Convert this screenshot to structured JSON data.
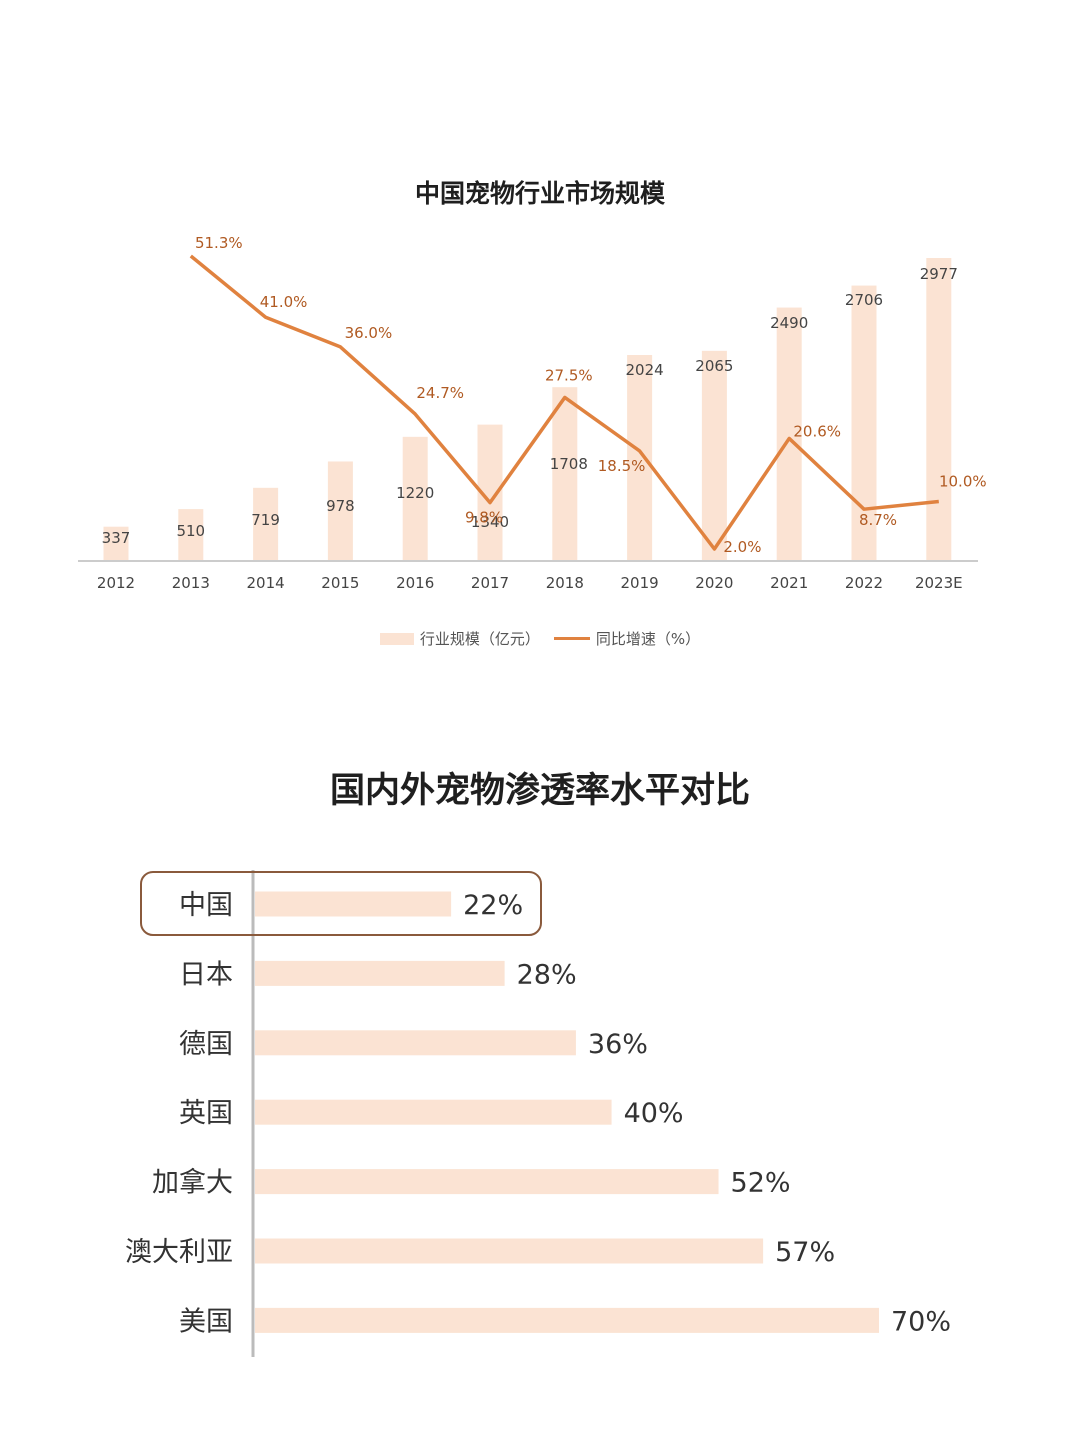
{
  "chart_data": [
    {
      "type": "bar",
      "title": "中国宠物行业市场规模",
      "categories": [
        "2012",
        "2013",
        "2014",
        "2015",
        "2016",
        "2017",
        "2018",
        "2019",
        "2020",
        "2021",
        "2022",
        "2023E"
      ],
      "series": [
        {
          "name": "行业规模（亿元）",
          "type": "bar",
          "values": [
            337,
            510,
            719,
            978,
            1220,
            1340,
            1708,
            2024,
            2065,
            2490,
            2706,
            2977
          ]
        },
        {
          "name": "同比增速（%）",
          "type": "line",
          "values": [
            null,
            51.3,
            41.0,
            36.0,
            24.7,
            9.8,
            27.5,
            18.5,
            2.0,
            20.6,
            8.7,
            10.0
          ]
        }
      ],
      "value_labels": [
        "337",
        "510",
        "719",
        "978",
        "1220",
        "1340",
        "1708",
        "2024",
        "2065",
        "2490",
        "2706",
        "2977"
      ],
      "rate_labels": [
        "",
        "51.3%",
        "41.0%",
        "36.0%",
        "24.7%",
        "9.8%",
        "27.5%",
        "18.5%",
        "2.0%",
        "20.6%",
        "8.7%",
        "10.0%"
      ],
      "legend_position": "bottom",
      "grid": false,
      "colors": {
        "bar": "#fbe3d3",
        "line": "#e0823f",
        "text": "#444444"
      }
    },
    {
      "type": "bar",
      "orientation": "horizontal",
      "title": "国内外宠物渗透率水平对比",
      "categories": [
        "中国",
        "日本",
        "德国",
        "英国",
        "加拿大",
        "澳大利亚",
        "美国"
      ],
      "values": [
        22,
        28,
        36,
        40,
        52,
        57,
        70
      ],
      "value_labels": [
        "22%",
        "28%",
        "36%",
        "40%",
        "52%",
        "57%",
        "70%"
      ],
      "highlighted": "中国",
      "grid": false,
      "colors": {
        "bar": "#fbe3d3",
        "highlight_border": "#8a5a3c",
        "axis": "#bbbbbb",
        "text": "#333333"
      }
    }
  ]
}
